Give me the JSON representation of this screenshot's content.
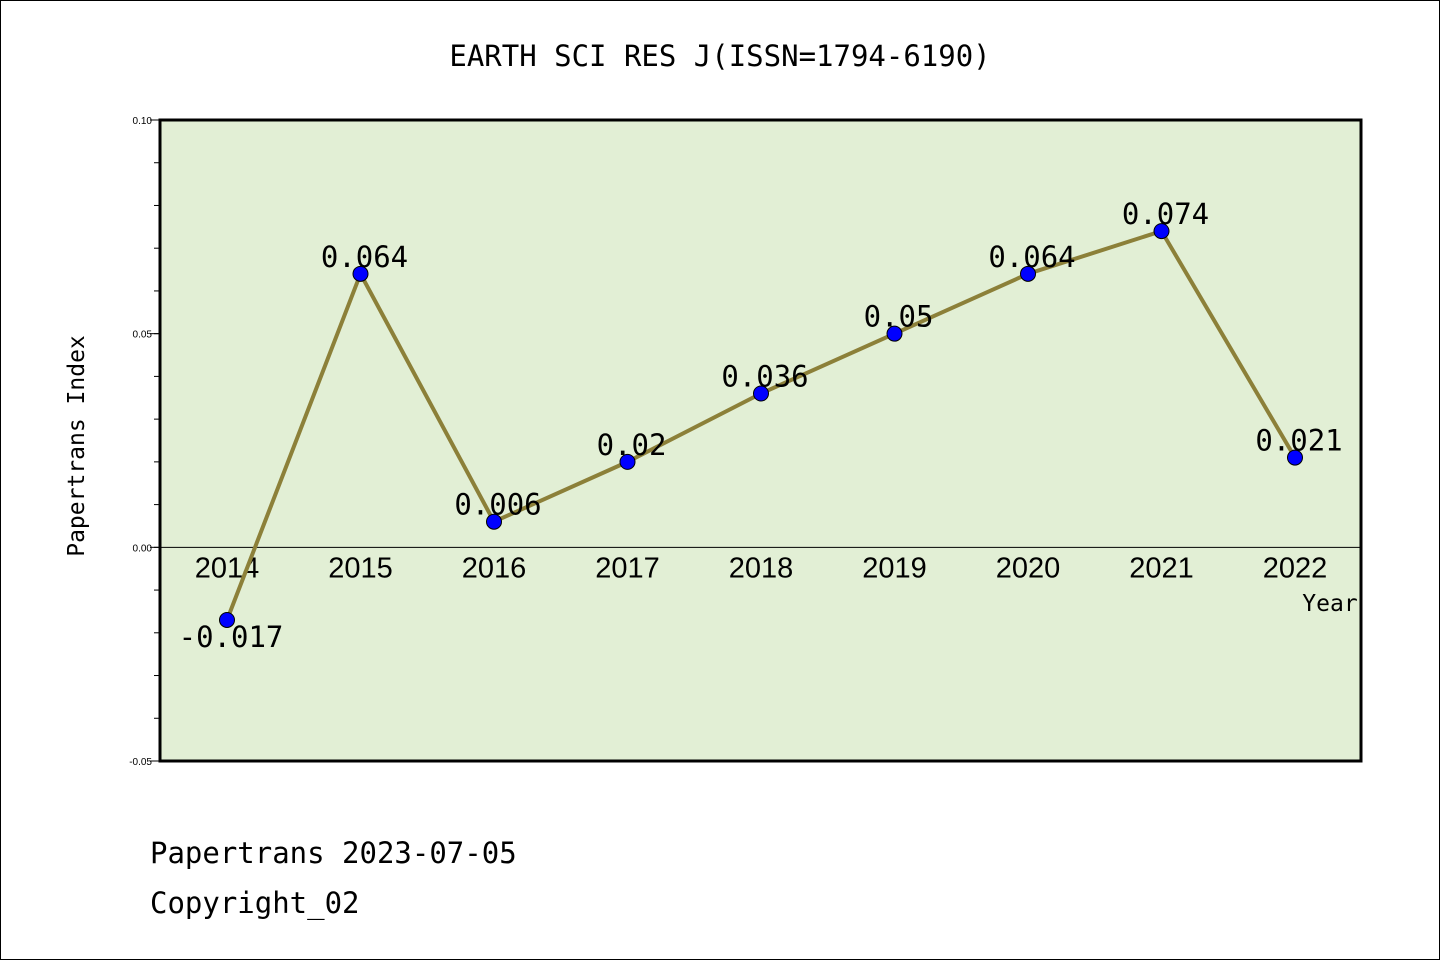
{
  "chart_data": {
    "type": "line",
    "title": "EARTH SCI RES J(ISSN=1794-6190)",
    "xlabel": "Year",
    "ylabel": "Papertrans Index",
    "categories": [
      "2014",
      "2015",
      "2016",
      "2017",
      "2018",
      "2019",
      "2020",
      "2021",
      "2022"
    ],
    "values": [
      -0.017,
      0.064,
      0.006,
      0.02,
      0.036,
      0.05,
      0.064,
      0.074,
      0.021
    ],
    "data_labels": [
      "-0.017",
      "0.064",
      "0.006",
      "0.02",
      "0.036",
      "0.05",
      "0.064",
      "0.074",
      "0.021"
    ],
    "ylim": [
      -0.05,
      0.1
    ],
    "yticks": [
      -0.05,
      0.0,
      0.05,
      0.1
    ],
    "ytick_labels": [
      "-0.05",
      "0.00",
      "0.05",
      "0.10"
    ],
    "grid": false,
    "legend": "none",
    "colors": {
      "plot_background": "#e2efd5",
      "line": "#8c8039",
      "marker": "#0000ff"
    }
  },
  "footer": {
    "source": "Papertrans 2023-07-05",
    "copyright": "Copyright_02"
  }
}
